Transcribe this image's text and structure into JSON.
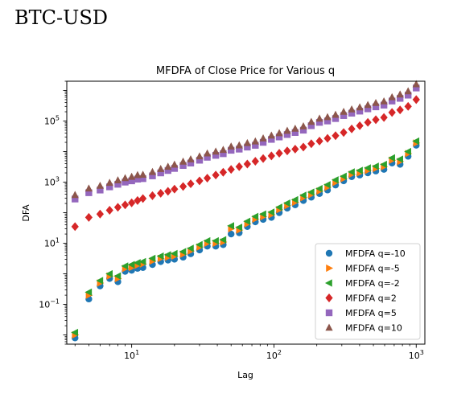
{
  "page": {
    "heading": "BTC-USD"
  },
  "chart_data": {
    "type": "scatter",
    "title": "MFDFA of Close Price for Various q",
    "xlabel": "Lag",
    "ylabel": "DFA",
    "xscale": "log",
    "yscale": "log",
    "xlim": [
      3.5,
      1150
    ],
    "ylim": [
      0.005,
      2000000
    ],
    "x_ticks": [
      {
        "value": 10,
        "base": "10",
        "exp": "1"
      },
      {
        "value": 100,
        "base": "10",
        "exp": "2"
      },
      {
        "value": 1000,
        "base": "10",
        "exp": "3"
      }
    ],
    "y_ticks": [
      {
        "value": 0.1,
        "base": "10",
        "exp": "−1"
      },
      {
        "value": 10,
        "base": "10",
        "exp": "1"
      },
      {
        "value": 1000,
        "base": "10",
        "exp": "3"
      },
      {
        "value": 100000,
        "base": "10",
        "exp": "5"
      }
    ],
    "grid": false,
    "legend_position": "lower-right",
    "x": [
      4,
      5,
      6,
      7,
      8,
      9,
      10,
      11,
      12,
      14,
      16,
      18,
      20,
      23,
      26,
      30,
      34,
      39,
      44,
      50,
      57,
      65,
      74,
      84,
      96,
      109,
      124,
      141,
      161,
      183,
      209,
      238,
      271,
      309,
      352,
      401,
      457,
      520,
      593,
      676,
      770,
      877,
      1000
    ],
    "series": [
      {
        "name": "MFDFA q=-10",
        "color": "#1f77b4",
        "marker": "circle",
        "values": [
          0.008,
          0.15,
          0.4,
          0.7,
          0.55,
          1.2,
          1.3,
          1.5,
          1.6,
          2.0,
          2.5,
          2.8,
          3.0,
          3.5,
          4.5,
          6,
          8,
          8,
          9,
          20,
          22,
          35,
          50,
          60,
          70,
          100,
          140,
          180,
          250,
          320,
          420,
          550,
          800,
          1100,
          1500,
          1700,
          2000,
          2300,
          2600,
          4200,
          3800,
          7000,
          16000
        ]
      },
      {
        "name": "MFDFA q=-5",
        "color": "#ff7f0e",
        "marker": "triangle-right",
        "values": [
          0.01,
          0.2,
          0.5,
          0.85,
          0.7,
          1.5,
          1.6,
          1.9,
          2.1,
          2.6,
          3.2,
          3.5,
          3.8,
          4.4,
          5.6,
          7.5,
          10,
          10,
          11,
          30,
          27,
          43,
          62,
          74,
          86,
          125,
          170,
          220,
          310,
          390,
          510,
          680,
          980,
          1300,
          1800,
          2000,
          2400,
          2800,
          3200,
          5200,
          4700,
          8600,
          19000
        ]
      },
      {
        "name": "MFDFA q=-2",
        "color": "#2ca02c",
        "marker": "triangle-left",
        "values": [
          0.012,
          0.25,
          0.6,
          1.0,
          0.85,
          1.8,
          2.0,
          2.3,
          2.5,
          3.2,
          3.8,
          4.2,
          4.6,
          5.3,
          6.8,
          9,
          12,
          12,
          13,
          37,
          33,
          52,
          75,
          90,
          104,
          150,
          205,
          265,
          370,
          470,
          610,
          820,
          1180,
          1550,
          2150,
          2400,
          2900,
          3300,
          3800,
          6200,
          5600,
          10000,
          22000
        ]
      },
      {
        "name": "MFDFA q=2",
        "color": "#d62728",
        "marker": "diamond",
        "values": [
          35,
          70,
          90,
          120,
          150,
          180,
          210,
          250,
          290,
          360,
          430,
          500,
          590,
          720,
          880,
          1100,
          1350,
          1700,
          2100,
          2600,
          3200,
          3900,
          4800,
          5900,
          7200,
          8800,
          10500,
          12000,
          14000,
          18000,
          22000,
          27000,
          33000,
          42000,
          55000,
          70000,
          90000,
          110000,
          130000,
          190000,
          230000,
          300000,
          500000
        ]
      },
      {
        "name": "MFDFA q=5",
        "color": "#9467bd",
        "marker": "square",
        "values": [
          280,
          450,
          550,
          700,
          850,
          1000,
          1100,
          1250,
          1300,
          1600,
          2000,
          2400,
          2800,
          3500,
          4200,
          5200,
          6500,
          7500,
          8500,
          11000,
          12000,
          14000,
          16000,
          20000,
          25000,
          30000,
          36000,
          42000,
          50000,
          70000,
          90000,
          100000,
          120000,
          150000,
          180000,
          210000,
          250000,
          290000,
          330000,
          450000,
          550000,
          700000,
          1200000
        ]
      },
      {
        "name": "MFDFA q=10",
        "color": "#8c564b",
        "marker": "triangle-up",
        "values": [
          380,
          620,
          760,
          950,
          1150,
          1350,
          1500,
          1700,
          1750,
          2150,
          2700,
          3200,
          3750,
          4700,
          5600,
          7000,
          8700,
          10000,
          11400,
          14700,
          16000,
          19000,
          21500,
          27000,
          33500,
          40000,
          48000,
          56000,
          67000,
          94000,
          120000,
          134000,
          160000,
          200000,
          240000,
          280000,
          335000,
          390000,
          440000,
          600000,
          740000,
          940000,
          1600000
        ]
      }
    ]
  }
}
